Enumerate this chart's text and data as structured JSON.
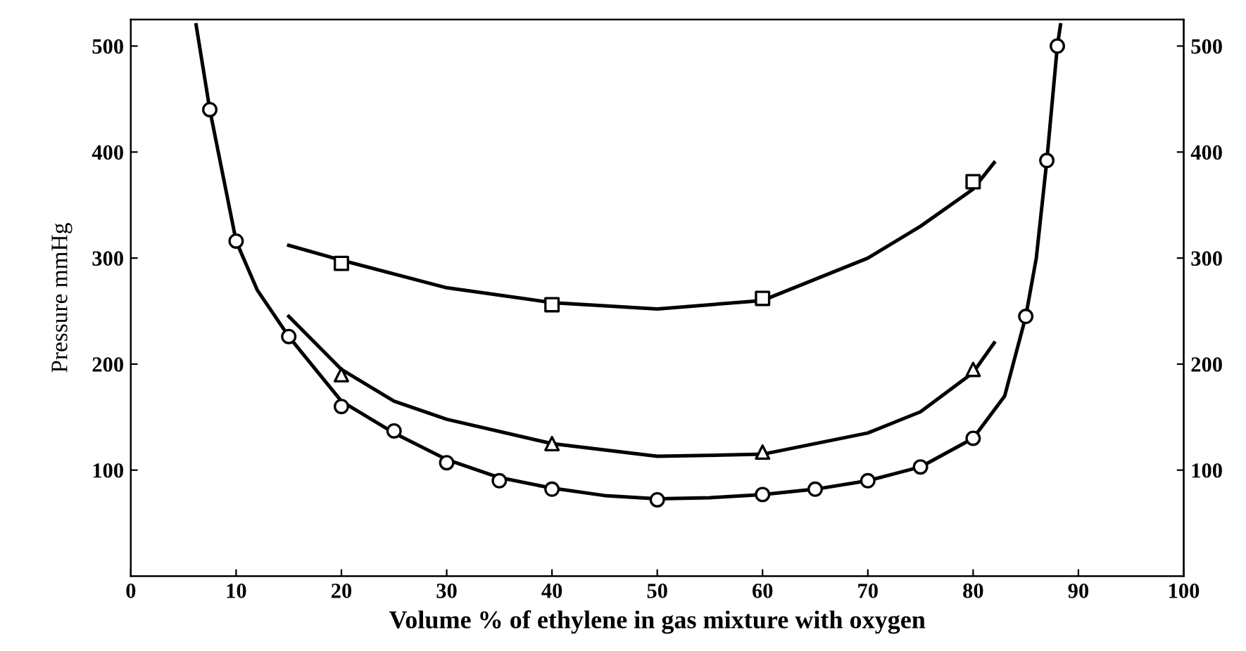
{
  "chart_data": {
    "type": "line",
    "xlabel": "Volume % of ethylene in gas mixture with oxygen",
    "ylabel": "Pressure mmHg",
    "xlim": [
      0,
      100
    ],
    "xticks": [
      0,
      10,
      20,
      30,
      40,
      50,
      60,
      70,
      80,
      90,
      100
    ],
    "ylim": [
      0,
      525
    ],
    "yticks": [
      100,
      200,
      300,
      400,
      500
    ],
    "y2lim": [
      0,
      525
    ],
    "y2ticks": [
      100,
      200,
      300,
      400,
      500
    ],
    "grid": false,
    "legend": false,
    "series": [
      {
        "type": "scatter",
        "marker": "circle",
        "color": "#000000",
        "x": [
          7.5,
          10,
          15,
          20,
          25,
          30,
          35,
          40,
          50,
          60,
          65,
          70,
          75,
          80,
          85,
          87,
          88
        ],
        "values": [
          440,
          316,
          226,
          160,
          137,
          107,
          90,
          82,
          72,
          77,
          82,
          90,
          103,
          130,
          245,
          392,
          500
        ]
      },
      {
        "marker": "none",
        "line_style": "solid",
        "color": "#000000",
        "x": [
          6.2,
          7.5,
          10,
          12,
          15,
          20,
          25,
          30,
          35,
          40,
          45,
          50,
          55,
          60,
          65,
          70,
          75,
          80,
          83,
          85,
          86,
          87,
          88,
          88.3
        ],
        "values": [
          520,
          440,
          316,
          270,
          226,
          165,
          135,
          110,
          93,
          83,
          76,
          73,
          74,
          77,
          82,
          90,
          103,
          130,
          170,
          245,
          300,
          392,
          500,
          520
        ]
      },
      {
        "type": "scatter",
        "marker": "triangle",
        "color": "#000000",
        "x": [
          20,
          40,
          60,
          80
        ],
        "values": [
          190,
          125,
          117,
          195
        ]
      },
      {
        "marker": "none",
        "line_style": "solid",
        "color": "#000000",
        "x": [
          15,
          20,
          25,
          30,
          40,
          50,
          60,
          70,
          75,
          80,
          82
        ],
        "values": [
          245,
          195,
          165,
          148,
          125,
          113,
          115,
          135,
          155,
          192,
          220
        ]
      },
      {
        "type": "scatter",
        "marker": "square",
        "color": "#000000",
        "x": [
          20,
          40,
          60,
          80
        ],
        "values": [
          295,
          256,
          262,
          372
        ]
      },
      {
        "marker": "none",
        "line_style": "solid",
        "color": "#000000",
        "x": [
          15,
          20,
          30,
          40,
          50,
          60,
          70,
          75,
          80,
          82
        ],
        "values": [
          312,
          298,
          272,
          258,
          252,
          260,
          300,
          330,
          365,
          390
        ]
      }
    ]
  }
}
